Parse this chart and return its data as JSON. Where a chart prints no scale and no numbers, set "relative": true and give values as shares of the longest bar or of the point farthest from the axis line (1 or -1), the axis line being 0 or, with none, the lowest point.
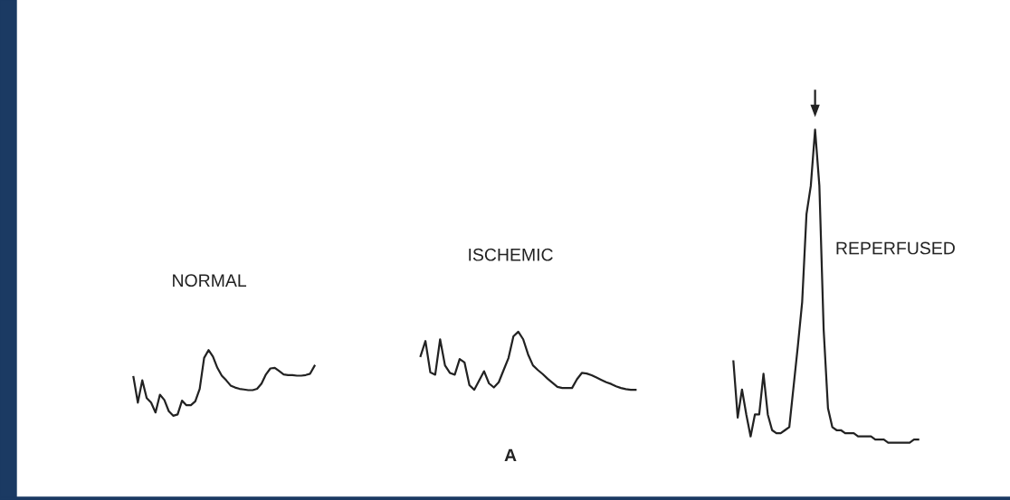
{
  "chart_data": [
    {
      "type": "line",
      "title": "NORMAL",
      "relative": true,
      "categories": [
        null,
        null,
        null,
        null,
        null,
        null,
        null,
        null,
        null,
        null,
        null,
        null,
        null,
        null,
        null,
        null,
        null,
        null,
        null,
        null,
        null,
        null,
        null,
        null,
        null,
        null,
        null,
        null,
        null,
        null,
        null,
        null,
        null,
        null,
        null,
        null,
        null,
        null,
        null,
        null,
        null,
        null
      ],
      "series": [
        {
          "color": "#222222",
          "values": [
            0.59,
            0.2,
            0.54,
            0.27,
            0.2,
            0.05,
            0.32,
            0.24,
            0.07,
            0.0,
            0.02,
            0.23,
            0.16,
            0.16,
            0.22,
            0.41,
            0.88,
            1.0,
            0.9,
            0.73,
            0.61,
            0.54,
            0.46,
            0.43,
            0.41,
            0.4,
            0.39,
            0.39,
            0.41,
            0.49,
            0.63,
            0.72,
            0.73,
            0.68,
            0.63,
            0.62,
            0.62,
            0.61,
            0.61,
            0.62,
            0.64,
            0.76
          ]
        }
      ]
    },
    {
      "type": "line",
      "title": "ISCHEMIC",
      "relative": true,
      "annotations": [
        "A"
      ],
      "categories": [
        null,
        null,
        null,
        null,
        null,
        null,
        null,
        null,
        null,
        null,
        null,
        null,
        null,
        null,
        null,
        null,
        null,
        null,
        null,
        null,
        null,
        null,
        null,
        null,
        null,
        null,
        null,
        null,
        null,
        null,
        null,
        null,
        null,
        null,
        null,
        null,
        null,
        null,
        null,
        null,
        null,
        null,
        null,
        null,
        null
      ],
      "series": [
        {
          "color": "#222222",
          "values": [
            0.58,
            0.84,
            0.3,
            0.26,
            0.87,
            0.42,
            0.29,
            0.26,
            0.53,
            0.47,
            0.08,
            0.0,
            0.16,
            0.32,
            0.11,
            0.04,
            0.13,
            0.34,
            0.55,
            0.92,
            1.0,
            0.87,
            0.61,
            0.42,
            0.34,
            0.27,
            0.19,
            0.12,
            0.05,
            0.03,
            0.03,
            0.03,
            0.18,
            0.29,
            0.28,
            0.25,
            0.21,
            0.17,
            0.13,
            0.1,
            0.06,
            0.03,
            0.01,
            0.0,
            0.0
          ]
        }
      ]
    },
    {
      "type": "line",
      "title": "REPERFUSED",
      "relative": true,
      "categories": [
        null,
        null,
        null,
        null,
        null,
        null,
        null,
        null,
        null,
        null,
        null,
        null,
        null,
        null,
        null,
        null,
        null,
        null,
        null,
        null,
        null,
        null,
        null,
        null,
        null,
        null,
        null,
        null,
        null,
        null,
        null,
        null,
        null,
        null,
        null,
        null,
        null,
        null,
        null,
        null,
        null,
        null,
        null,
        null
      ],
      "series": [
        {
          "color": "#222222",
          "values": [
            0.26,
            0.08,
            0.17,
            0.09,
            0.02,
            0.09,
            0.09,
            0.22,
            0.09,
            0.04,
            0.03,
            0.03,
            0.04,
            0.05,
            0.18,
            0.31,
            0.45,
            0.73,
            0.82,
            1.0,
            0.82,
            0.36,
            0.11,
            0.05,
            0.04,
            0.04,
            0.03,
            0.03,
            0.03,
            0.02,
            0.02,
            0.02,
            0.02,
            0.01,
            0.01,
            0.01,
            0.0,
            0.0,
            0.0,
            0.0,
            0.0,
            0.0,
            0.01,
            0.01
          ]
        }
      ]
    }
  ]
}
